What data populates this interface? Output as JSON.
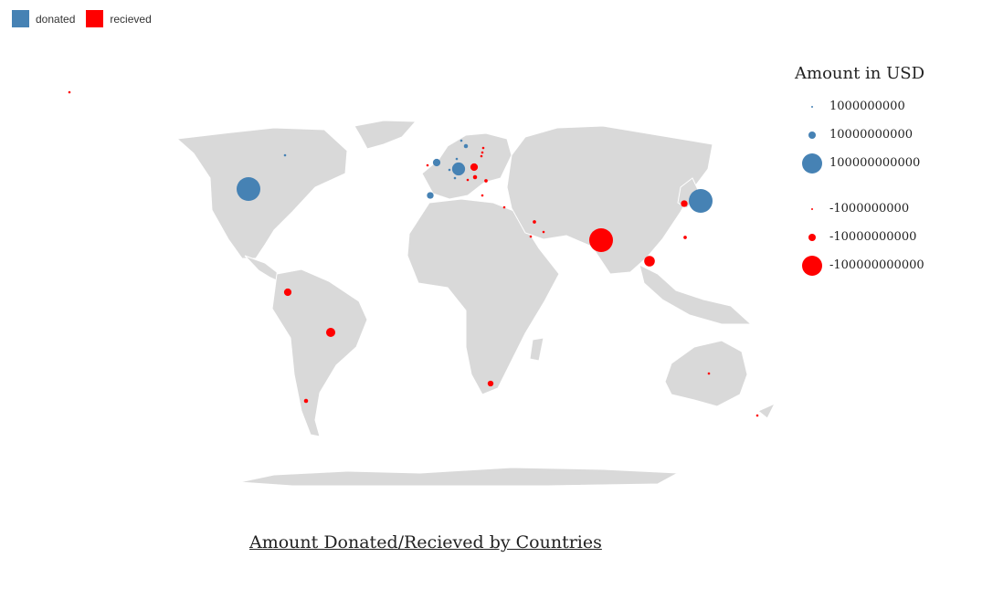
{
  "legend": {
    "donated_label": "donated",
    "received_label": "recieved",
    "donated_color": "#4682b4",
    "received_color": "#ff0000"
  },
  "size_legend": {
    "title": "Amount in USD",
    "donated_values": [
      "1000000000",
      "10000000000",
      "100000000000"
    ],
    "received_values": [
      "-1000000000",
      "-10000000000",
      "-100000000000"
    ]
  },
  "title": "Amount Donated/Recieved by Countries",
  "chart_data": {
    "type": "scatter",
    "description_units": "USD",
    "series": [
      {
        "name": "donated",
        "color": "#4682b4",
        "points": [
          {
            "country": "United States",
            "value": 100000000000
          },
          {
            "country": "Japan",
            "value": 100000000000
          },
          {
            "country": "Germany",
            "value": 30000000000
          },
          {
            "country": "United Kingdom",
            "value": 10000000000
          },
          {
            "country": "Spain",
            "value": 8000000000
          },
          {
            "country": "Sweden",
            "value": 3000000000
          },
          {
            "country": "Canada",
            "value": 1000000000
          },
          {
            "country": "Norway",
            "value": 1000000000
          },
          {
            "country": "Denmark",
            "value": 1000000000
          },
          {
            "country": "France",
            "value": 1000000000
          },
          {
            "country": "Switzerland",
            "value": 1000000000
          }
        ]
      },
      {
        "name": "recieved",
        "color": "#ff0000",
        "points": [
          {
            "country": "India",
            "value": -100000000000
          },
          {
            "country": "Thailand",
            "value": -20000000000
          },
          {
            "country": "Poland",
            "value": -10000000000
          },
          {
            "country": "South Korea",
            "value": -8000000000
          },
          {
            "country": "Brazil",
            "value": -15000000000
          },
          {
            "country": "Colombia",
            "value": -10000000000
          },
          {
            "country": "South Africa",
            "value": -6000000000
          },
          {
            "country": "Chile",
            "value": -3000000000
          },
          {
            "country": "Hungary",
            "value": -3000000000
          },
          {
            "country": "Saudi Arabia",
            "value": -2000000000
          },
          {
            "country": "Taiwan",
            "value": -2000000000
          },
          {
            "country": "Romania",
            "value": -2000000000
          },
          {
            "country": "Ireland",
            "value": -1000000000
          },
          {
            "country": "UAE",
            "value": -1000000000
          },
          {
            "country": "Hawaii",
            "value": -1000000000
          },
          {
            "country": "Cyprus",
            "value": -1000000000
          },
          {
            "country": "Lithuania",
            "value": -1000000000
          },
          {
            "country": "Latvia",
            "value": -1000000000
          },
          {
            "country": "Estonia",
            "value": -1000000000
          },
          {
            "country": "Australia",
            "value": -1000000000
          },
          {
            "country": "New Zealand",
            "value": -1000000000
          },
          {
            "country": "Qatar",
            "value": -1000000000
          },
          {
            "country": "Slovenia",
            "value": -1000000000
          },
          {
            "country": "Greece",
            "value": -1000000000
          }
        ]
      }
    ]
  }
}
